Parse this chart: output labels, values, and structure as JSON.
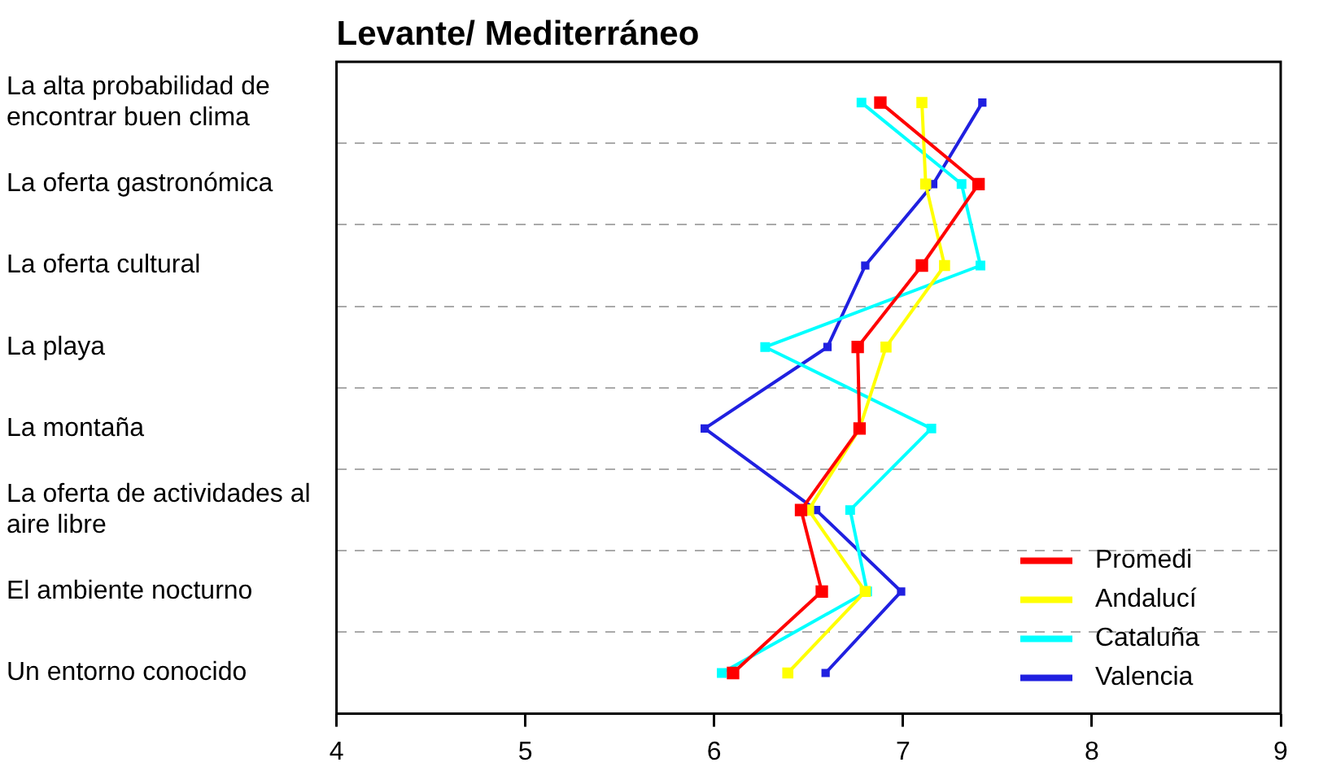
{
  "chart_data": {
    "type": "line",
    "orientation": "horizontal",
    "title": "Levante/ Mediterráneo",
    "categories": [
      "La alta probabilidad de encontrar buen clima",
      "La oferta gastronómica",
      "La oferta cultural",
      "La playa",
      "La montaña",
      "La oferta de actividades al aire libre",
      "El ambiente nocturno",
      "Un entorno conocido"
    ],
    "series": [
      {
        "name": "Promedi",
        "color": "#ff0000",
        "values": [
          6.88,
          7.4,
          7.1,
          6.76,
          6.77,
          6.46,
          6.57,
          6.1
        ]
      },
      {
        "name": "Andalucí",
        "color": "#ffff00",
        "values": [
          7.1,
          7.12,
          7.22,
          6.91,
          6.77,
          6.5,
          6.8,
          6.39
        ]
      },
      {
        "name": "Cataluña",
        "color": "#00ffff",
        "values": [
          6.78,
          7.31,
          7.41,
          6.27,
          7.15,
          6.72,
          6.81,
          6.04
        ]
      },
      {
        "name": "Valencia",
        "color": "#2020e0",
        "values": [
          7.42,
          7.16,
          6.8,
          6.6,
          5.95,
          6.54,
          6.99,
          6.59
        ]
      }
    ],
    "xlim": [
      4,
      9
    ],
    "xticks": [
      4,
      5,
      6,
      7,
      8,
      9
    ],
    "grid": "y",
    "legend": "bottom right",
    "marker": "square",
    "line_style": "solid"
  }
}
